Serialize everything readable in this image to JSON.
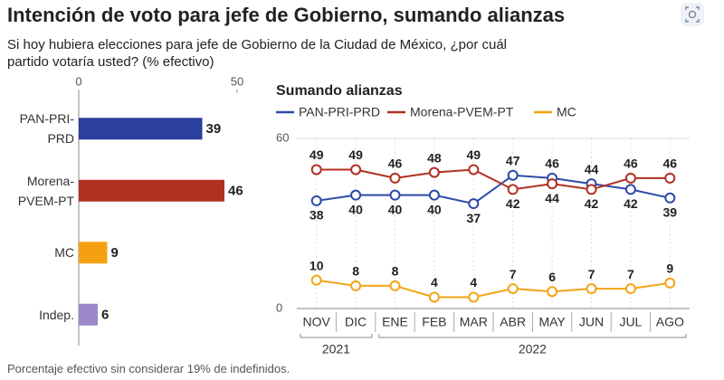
{
  "header": {
    "title": "Intención de voto para jefe de Gobierno, sumando alianzas",
    "subtitle": "Si hoy hubiera elecciones para jefe de Gobierno de la Ciudad de México, ¿por cuál partido votaría usted? (% efectivo)"
  },
  "footer": "Porcentaje efectivo sin considerar 19% de indefinidos.",
  "chart_data": [
    {
      "type": "hbar",
      "categories": [
        "PAN-PRI-PRD",
        "Morena-PVEM-PT",
        "MC",
        "Indep."
      ],
      "values": [
        39,
        46,
        9,
        6
      ],
      "colors": [
        "#2b3f9e",
        "#b03022",
        "#f5a013",
        "#9b87c9"
      ],
      "xlim": [
        0,
        50
      ],
      "xticks": [
        0,
        50
      ]
    },
    {
      "type": "line",
      "title": "Sumando alianzas",
      "categories": [
        "NOV",
        "DIC",
        "ENE",
        "FEB",
        "MAR",
        "ABR",
        "MAY",
        "JUN",
        "JUL",
        "AGO"
      ],
      "year_groups": [
        {
          "label": "2021",
          "first": 0,
          "last": 1
        },
        {
          "label": "2022",
          "first": 2,
          "last": 9
        }
      ],
      "series": [
        {
          "name": "PAN-PRI-PRD",
          "color": "#2b4aa8",
          "values": [
            38,
            40,
            40,
            40,
            37,
            47,
            46,
            44,
            42,
            39
          ]
        },
        {
          "name": "Morena-PVEM-PT",
          "color": "#b03022",
          "values": [
            49,
            49,
            46,
            48,
            49,
            42,
            44,
            42,
            46,
            46
          ]
        },
        {
          "name": "MC",
          "color": "#f2a516",
          "values": [
            10,
            8,
            8,
            4,
            4,
            7,
            6,
            7,
            7,
            9
          ]
        }
      ],
      "ylim": [
        0,
        60
      ],
      "yticks": [
        0,
        60
      ],
      "grid": true
    }
  ]
}
